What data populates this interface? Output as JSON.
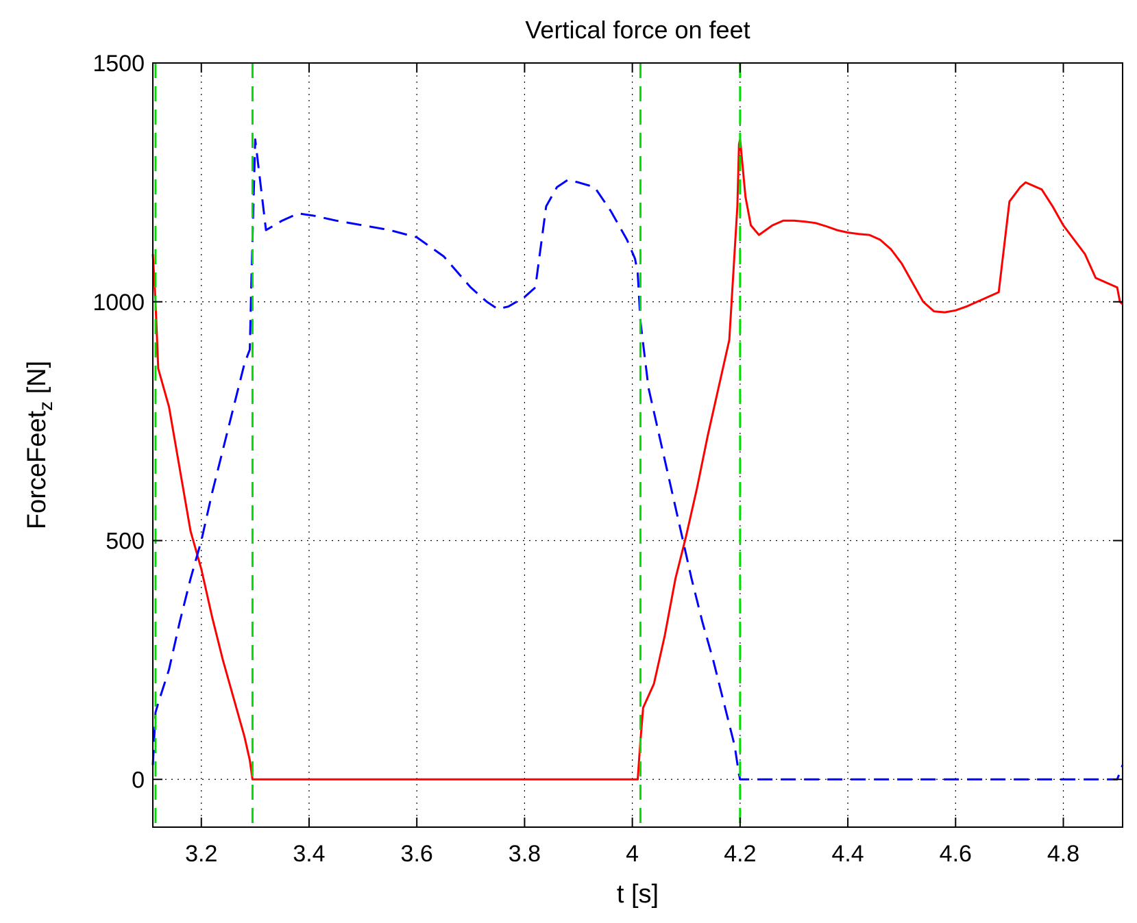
{
  "chart_data": {
    "type": "line",
    "title": "Vertical force on feet",
    "xlabel": "t [s]",
    "ylabel_main": "ForceFeet",
    "ylabel_sub": "z",
    "ylabel_unit": " [N]",
    "xlim": [
      3.11,
      4.91
    ],
    "ylim": [
      -100,
      1500
    ],
    "xticks": [
      3.2,
      3.4,
      3.6,
      3.8,
      4,
      4.2,
      4.4,
      4.6,
      4.8
    ],
    "xtick_labels": [
      "3.2",
      "3.4",
      "3.6",
      "3.8",
      "4",
      "4.2",
      "4.4",
      "4.6",
      "4.8"
    ],
    "yticks": [
      0,
      500,
      1000,
      1500
    ],
    "ytick_labels": [
      "0",
      "500",
      "1000",
      "1500"
    ],
    "grid": true,
    "colors": {
      "red": "#ff0000",
      "blue": "#0000ff",
      "green": "#00dd00",
      "grid": "#000000"
    },
    "vlines": [
      3.115,
      3.295,
      4.015,
      4.2
    ],
    "series": [
      {
        "color": "#ff0000",
        "style": "solid",
        "x": [
          3.11,
          3.115,
          3.12,
          3.14,
          3.16,
          3.18,
          3.2,
          3.22,
          3.24,
          3.26,
          3.28,
          3.29,
          3.295,
          3.3,
          3.5,
          3.7,
          3.9,
          4.0,
          4.01,
          4.015,
          4.02,
          4.04,
          4.06,
          4.08,
          4.1,
          4.12,
          4.14,
          4.16,
          4.18,
          4.195,
          4.198,
          4.2,
          4.21,
          4.22,
          4.235,
          4.26,
          4.28,
          4.3,
          4.32,
          4.34,
          4.36,
          4.38,
          4.4,
          4.42,
          4.44,
          4.46,
          4.48,
          4.5,
          4.52,
          4.54,
          4.56,
          4.58,
          4.6,
          4.62,
          4.64,
          4.66,
          4.68,
          4.7,
          4.72,
          4.73,
          4.74,
          4.76,
          4.78,
          4.8,
          4.82,
          4.84,
          4.86,
          4.88,
          4.9,
          4.905,
          4.91
        ],
        "y": [
          1100,
          1000,
          860,
          780,
          650,
          520,
          440,
          340,
          250,
          170,
          90,
          40,
          0,
          0,
          0,
          0,
          0,
          0,
          0,
          80,
          150,
          200,
          300,
          420,
          510,
          610,
          720,
          820,
          920,
          1200,
          1330,
          1340,
          1220,
          1160,
          1140,
          1160,
          1170,
          1170,
          1168,
          1165,
          1158,
          1150,
          1145,
          1142,
          1140,
          1130,
          1110,
          1080,
          1040,
          1000,
          980,
          978,
          982,
          990,
          1000,
          1010,
          1020,
          1210,
          1240,
          1250,
          1245,
          1235,
          1200,
          1160,
          1130,
          1100,
          1050,
          1040,
          1030,
          1000,
          995
        ],
        "y_note": ""
      },
      {
        "color": "#0000ff",
        "style": "dashed",
        "x": [
          3.11,
          3.115,
          3.12,
          3.14,
          3.16,
          3.18,
          3.2,
          3.22,
          3.24,
          3.26,
          3.28,
          3.29,
          3.293,
          3.295,
          3.3,
          3.32,
          3.35,
          3.38,
          3.41,
          3.45,
          3.5,
          3.55,
          3.6,
          3.65,
          3.7,
          3.73,
          3.75,
          3.77,
          3.8,
          3.82,
          3.84,
          3.86,
          3.88,
          3.9,
          3.93,
          3.96,
          3.99,
          4.005,
          4.01,
          4.015,
          4.03,
          4.05,
          4.07,
          4.09,
          4.11,
          4.13,
          4.15,
          4.17,
          4.19,
          4.198,
          4.2,
          4.3,
          4.5,
          4.7,
          4.9,
          4.91
        ],
        "y": [
          30,
          140,
          160,
          230,
          330,
          420,
          500,
          600,
          690,
          780,
          870,
          900,
          1050,
          1130,
          1340,
          1150,
          1170,
          1185,
          1180,
          1170,
          1160,
          1150,
          1135,
          1095,
          1030,
          1000,
          985,
          990,
          1010,
          1030,
          1200,
          1240,
          1255,
          1250,
          1240,
          1190,
          1130,
          1090,
          1060,
          960,
          820,
          720,
          620,
          520,
          420,
          330,
          250,
          160,
          70,
          10,
          0,
          0,
          0,
          0,
          0,
          30
        ],
        "y_note": ""
      }
    ]
  }
}
